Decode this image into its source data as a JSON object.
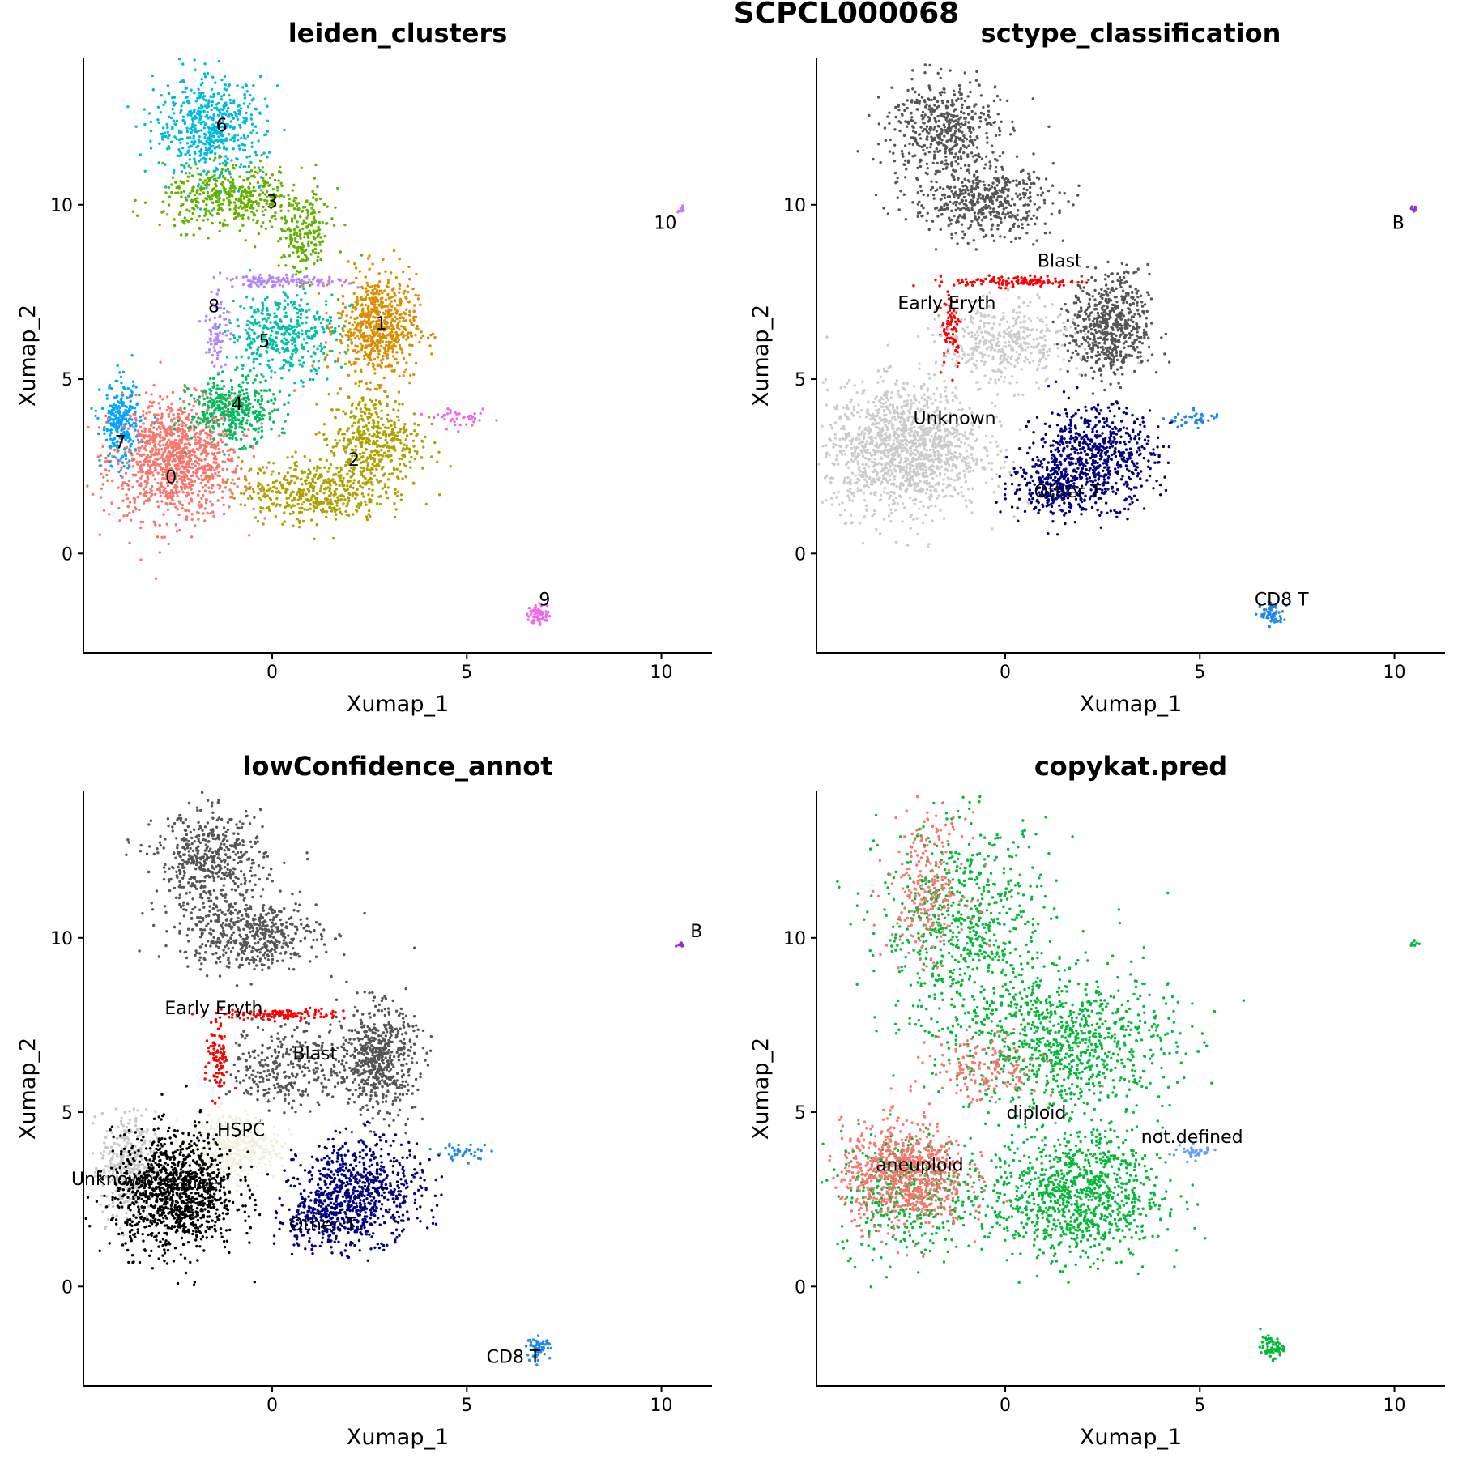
{
  "figure": {
    "title": "SCPCL000068"
  },
  "chart_data": [
    {
      "type": "scatter",
      "title": "leiden_clusters",
      "xlabel": "Xumap_1",
      "ylabel": "Xumap_2",
      "xlim": [
        -4.85,
        11.3
      ],
      "ylim": [
        -2.85,
        14.2
      ],
      "xticks": [
        0,
        5,
        10
      ],
      "yticks": [
        0,
        5,
        10
      ],
      "legend": "none",
      "labels": [
        {
          "text": "6",
          "x": -1.3,
          "y": 12.3
        },
        {
          "text": "3",
          "x": 0.0,
          "y": 10.1
        },
        {
          "text": "10",
          "x": 10.1,
          "y": 9.5
        },
        {
          "text": "8",
          "x": -1.5,
          "y": 7.1
        },
        {
          "text": "1",
          "x": 2.8,
          "y": 6.6
        },
        {
          "text": "5",
          "x": -0.2,
          "y": 6.1
        },
        {
          "text": "4",
          "x": -0.9,
          "y": 4.3
        },
        {
          "text": "7",
          "x": -3.9,
          "y": 3.2
        },
        {
          "text": "2",
          "x": 2.1,
          "y": 2.7
        },
        {
          "text": "0",
          "x": -2.6,
          "y": 2.2
        },
        {
          "text": "9",
          "x": 7.0,
          "y": -1.3
        }
      ],
      "series": [
        {
          "name": "0",
          "color": "#F8766D",
          "clusters": [
            {
              "x": -2.5,
              "y": 2.7,
              "sx": 0.85,
              "sy": 0.85,
              "n": 1100
            }
          ]
        },
        {
          "name": "1",
          "color": "#DB8E00",
          "clusters": [
            {
              "x": 2.7,
              "y": 6.5,
              "sx": 0.5,
              "sy": 0.75,
              "n": 650
            }
          ]
        },
        {
          "name": "2",
          "color": "#AEA200",
          "clusters": [
            {
              "x": 2.6,
              "y": 3.2,
              "sx": 0.6,
              "sy": 0.7,
              "n": 450
            },
            {
              "x": 1.0,
              "y": 1.8,
              "sx": 0.9,
              "sy": 0.45,
              "n": 450
            }
          ]
        },
        {
          "name": "3",
          "color": "#64B200",
          "clusters": [
            {
              "x": -1.0,
              "y": 10.2,
              "sx": 0.9,
              "sy": 0.45,
              "n": 450
            },
            {
              "x": 0.8,
              "y": 9.1,
              "sx": 0.35,
              "sy": 0.6,
              "n": 200
            }
          ]
        },
        {
          "name": "4",
          "color": "#00BD5C",
          "clusters": [
            {
              "x": -1.0,
              "y": 4.1,
              "sx": 0.55,
              "sy": 0.45,
              "n": 400
            }
          ]
        },
        {
          "name": "5",
          "color": "#00C1A7",
          "clusters": [
            {
              "x": 0.3,
              "y": 6.3,
              "sx": 0.7,
              "sy": 0.6,
              "n": 400
            }
          ]
        },
        {
          "name": "6",
          "color": "#00BADE",
          "clusters": [
            {
              "x": -1.6,
              "y": 12.2,
              "sx": 0.7,
              "sy": 0.7,
              "n": 550
            }
          ]
        },
        {
          "name": "7",
          "color": "#00A6FF",
          "clusters": [
            {
              "x": -3.9,
              "y": 3.7,
              "sx": 0.25,
              "sy": 0.6,
              "n": 250
            }
          ]
        },
        {
          "name": "8",
          "color": "#B385FF",
          "clusters": [
            {
              "x": 0.3,
              "y": 7.8,
              "sx": 0.8,
              "sy": 0.08,
              "n": 120
            },
            {
              "x": -1.4,
              "y": 6.5,
              "sx": 0.15,
              "sy": 0.6,
              "n": 80
            }
          ]
        },
        {
          "name": "9",
          "color": "#EF67EB",
          "clusters": [
            {
              "x": 6.85,
              "y": -1.75,
              "sx": 0.15,
              "sy": 0.15,
              "n": 60
            },
            {
              "x": 4.9,
              "y": 3.85,
              "sx": 0.35,
              "sy": 0.12,
              "n": 40
            }
          ]
        },
        {
          "name": "10",
          "color": "#C77CFF",
          "clusters": [
            {
              "x": 10.5,
              "y": 9.85,
              "sx": 0.05,
              "sy": 0.05,
              "n": 10
            }
          ]
        }
      ]
    },
    {
      "type": "scatter",
      "title": "sctype_classification",
      "xlabel": "Xumap_1",
      "ylabel": "Xumap_2",
      "xlim": [
        -4.85,
        11.3
      ],
      "ylim": [
        -2.85,
        14.2
      ],
      "xticks": [
        0,
        5,
        10
      ],
      "yticks": [
        0,
        5,
        10
      ],
      "legend": "none",
      "labels": [
        {
          "text": "B",
          "x": 10.1,
          "y": 9.5
        },
        {
          "text": "Blast",
          "x": 1.4,
          "y": 8.4
        },
        {
          "text": "Early Eryth",
          "x": -1.5,
          "y": 7.2
        },
        {
          "text": "Unknown",
          "x": -1.3,
          "y": 3.9
        },
        {
          "text": "Other T",
          "x": 1.6,
          "y": 1.8
        },
        {
          "text": "CD8 T",
          "x": 7.1,
          "y": -1.3
        }
      ],
      "series": [
        {
          "name": "Blast",
          "color": "#555555",
          "clusters": [
            {
              "x": -1.6,
              "y": 12.2,
              "sx": 0.7,
              "sy": 0.7,
              "n": 500
            },
            {
              "x": -0.6,
              "y": 10.1,
              "sx": 0.9,
              "sy": 0.5,
              "n": 500
            },
            {
              "x": 2.7,
              "y": 6.5,
              "sx": 0.5,
              "sy": 0.75,
              "n": 600
            }
          ]
        },
        {
          "name": "Early Eryth",
          "color": "#FF0000",
          "clusters": [
            {
              "x": 0.3,
              "y": 7.8,
              "sx": 0.8,
              "sy": 0.08,
              "n": 120
            },
            {
              "x": -1.4,
              "y": 6.5,
              "sx": 0.15,
              "sy": 0.6,
              "n": 80
            }
          ]
        },
        {
          "name": "Unknown",
          "color": "#CCCCCC",
          "clusters": [
            {
              "x": -2.6,
              "y": 3.0,
              "sx": 1.0,
              "sy": 0.9,
              "n": 1400
            },
            {
              "x": 0.0,
              "y": 6.0,
              "sx": 0.8,
              "sy": 0.6,
              "n": 400
            }
          ]
        },
        {
          "name": "Other T",
          "color": "#000080",
          "clusters": [
            {
              "x": 2.3,
              "y": 2.8,
              "sx": 0.8,
              "sy": 0.7,
              "n": 650
            },
            {
              "x": 1.3,
              "y": 1.9,
              "sx": 0.6,
              "sy": 0.4,
              "n": 250
            }
          ]
        },
        {
          "name": "CD8 T",
          "color": "#1E88E5",
          "clusters": [
            {
              "x": 6.85,
              "y": -1.75,
              "sx": 0.15,
              "sy": 0.15,
              "n": 60
            },
            {
              "x": 4.9,
              "y": 3.85,
              "sx": 0.35,
              "sy": 0.12,
              "n": 40
            }
          ]
        },
        {
          "name": "B",
          "color": "#9932CC",
          "clusters": [
            {
              "x": 10.5,
              "y": 9.85,
              "sx": 0.05,
              "sy": 0.05,
              "n": 10
            }
          ]
        }
      ]
    },
    {
      "type": "scatter",
      "title": "lowConfidence_annot",
      "xlabel": "Xumap_1",
      "ylabel": "Xumap_2",
      "xlim": [
        -4.85,
        11.3
      ],
      "ylim": [
        -2.85,
        14.2
      ],
      "xticks": [
        0,
        5,
        10
      ],
      "yticks": [
        0,
        5,
        10
      ],
      "legend": "none",
      "labels": [
        {
          "text": "B",
          "x": 10.9,
          "y": 10.2
        },
        {
          "text": "Early Eryth",
          "x": -1.5,
          "y": 8.0
        },
        {
          "text": "Blast",
          "x": 1.1,
          "y": 6.7
        },
        {
          "text": "HSPC",
          "x": -0.8,
          "y": 4.5
        },
        {
          "text": "Unknown",
          "x": -4.1,
          "y": 3.1
        },
        {
          "text": "Cancer",
          "x": -2.0,
          "y": 3.0
        },
        {
          "text": "Other T",
          "x": 1.3,
          "y": 1.8
        },
        {
          "text": "CD8 T",
          "x": 6.2,
          "y": -2.0
        }
      ],
      "series": [
        {
          "name": "Blast",
          "color": "#555555",
          "clusters": [
            {
              "x": -1.6,
              "y": 12.2,
              "sx": 0.7,
              "sy": 0.7,
              "n": 500
            },
            {
              "x": -0.6,
              "y": 10.1,
              "sx": 0.9,
              "sy": 0.5,
              "n": 500
            },
            {
              "x": 2.7,
              "y": 6.5,
              "sx": 0.5,
              "sy": 0.75,
              "n": 600
            },
            {
              "x": 0.3,
              "y": 6.3,
              "sx": 0.7,
              "sy": 0.6,
              "n": 300
            }
          ]
        },
        {
          "name": "Early Eryth",
          "color": "#FF0000",
          "clusters": [
            {
              "x": 0.3,
              "y": 7.8,
              "sx": 0.8,
              "sy": 0.08,
              "n": 120
            },
            {
              "x": -1.4,
              "y": 6.5,
              "sx": 0.15,
              "sy": 0.6,
              "n": 80
            }
          ]
        },
        {
          "name": "Unknown",
          "color": "#C8C8C8",
          "clusters": [
            {
              "x": -3.7,
              "y": 3.4,
              "sx": 0.35,
              "sy": 0.8,
              "n": 350
            }
          ]
        },
        {
          "name": "HSPC",
          "color": "#F0F0DC",
          "clusters": [
            {
              "x": -1.0,
              "y": 4.0,
              "sx": 0.6,
              "sy": 0.5,
              "n": 400
            }
          ]
        },
        {
          "name": "Cancer",
          "color": "#000000",
          "clusters": [
            {
              "x": -2.5,
              "y": 2.7,
              "sx": 0.8,
              "sy": 0.85,
              "n": 1100
            }
          ]
        },
        {
          "name": "Other T",
          "color": "#000080",
          "clusters": [
            {
              "x": 2.3,
              "y": 2.8,
              "sx": 0.8,
              "sy": 0.7,
              "n": 650
            },
            {
              "x": 1.3,
              "y": 1.9,
              "sx": 0.6,
              "sy": 0.4,
              "n": 250
            }
          ]
        },
        {
          "name": "CD8 T",
          "color": "#1E88E5",
          "clusters": [
            {
              "x": 6.85,
              "y": -1.75,
              "sx": 0.15,
              "sy": 0.15,
              "n": 60
            },
            {
              "x": 4.9,
              "y": 3.85,
              "sx": 0.35,
              "sy": 0.12,
              "n": 40
            }
          ]
        },
        {
          "name": "B",
          "color": "#9932CC",
          "clusters": [
            {
              "x": 10.5,
              "y": 9.85,
              "sx": 0.05,
              "sy": 0.05,
              "n": 10
            }
          ]
        }
      ]
    },
    {
      "type": "scatter",
      "title": "copykat.pred",
      "xlabel": "Xumap_1",
      "ylabel": "Xumap_2",
      "xlim": [
        -4.85,
        11.3
      ],
      "ylim": [
        -2.85,
        14.2
      ],
      "xticks": [
        0,
        5,
        10
      ],
      "yticks": [
        0,
        5,
        10
      ],
      "legend": "none",
      "labels": [
        {
          "text": "diploid",
          "x": 0.8,
          "y": 5.0
        },
        {
          "text": "not.defined",
          "x": 4.8,
          "y": 4.3
        },
        {
          "text": "aneuploid",
          "x": -2.2,
          "y": 3.5
        }
      ],
      "series": [
        {
          "name": "diploid",
          "color": "#00BA38",
          "clusters": [
            {
              "x": -1.0,
              "y": 10.3,
              "sx": 1.1,
              "sy": 1.5,
              "n": 700
            },
            {
              "x": 1.5,
              "y": 7.0,
              "sx": 1.4,
              "sy": 1.0,
              "n": 900
            },
            {
              "x": 1.8,
              "y": 2.6,
              "sx": 1.1,
              "sy": 0.9,
              "n": 1000
            },
            {
              "x": -2.5,
              "y": 2.7,
              "sx": 0.9,
              "sy": 0.9,
              "n": 400
            },
            {
              "x": 6.85,
              "y": -1.75,
              "sx": 0.15,
              "sy": 0.15,
              "n": 60
            },
            {
              "x": 10.5,
              "y": 9.85,
              "sx": 0.05,
              "sy": 0.05,
              "n": 10
            }
          ]
        },
        {
          "name": "aneuploid",
          "color": "#F8766D",
          "clusters": [
            {
              "x": -2.6,
              "y": 3.2,
              "sx": 0.8,
              "sy": 0.75,
              "n": 800
            },
            {
              "x": -2.0,
              "y": 11.5,
              "sx": 0.5,
              "sy": 1.0,
              "n": 250
            },
            {
              "x": -0.5,
              "y": 6.2,
              "sx": 0.7,
              "sy": 0.5,
              "n": 150
            }
          ]
        },
        {
          "name": "not.defined",
          "color": "#619CFF",
          "clusters": [
            {
              "x": 4.8,
              "y": 3.85,
              "sx": 0.3,
              "sy": 0.1,
              "n": 40
            }
          ]
        }
      ]
    }
  ]
}
